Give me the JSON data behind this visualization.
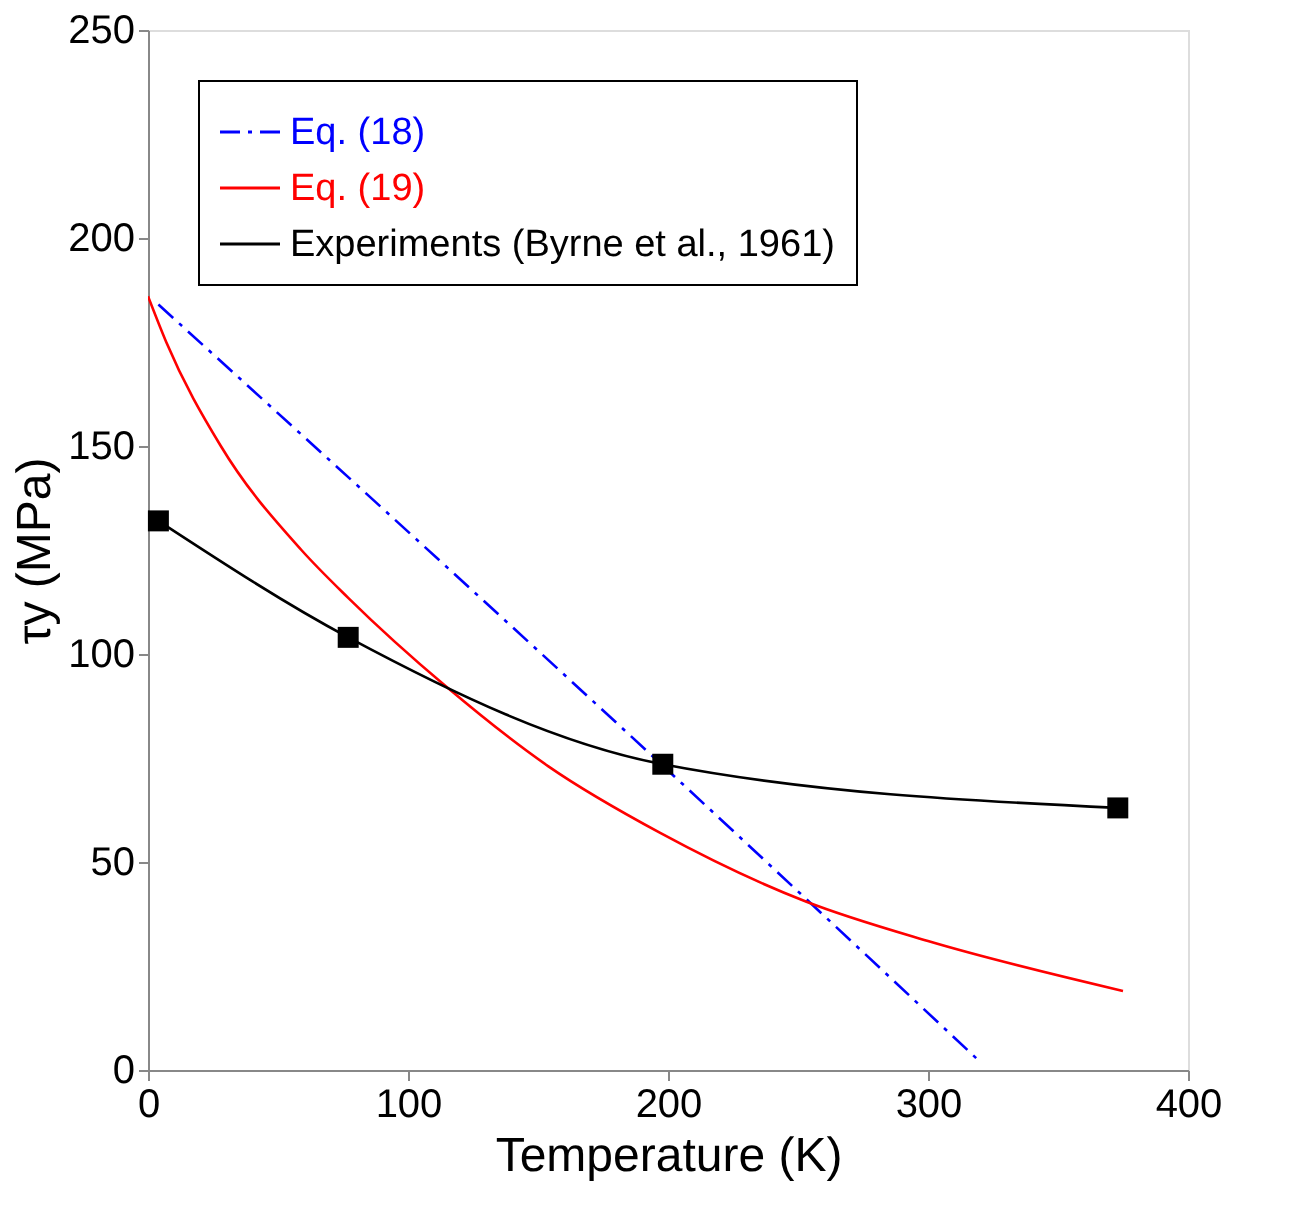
{
  "chart_data": {
    "type": "line",
    "xlabel": "Temperature (K)",
    "ylabel": "τy (MPa)",
    "xlim": [
      0,
      400
    ],
    "xticks": [
      0,
      100,
      200,
      300,
      400
    ],
    "ylim": [
      0,
      250
    ],
    "yticks": [
      0,
      50,
      100,
      150,
      200,
      250
    ],
    "grid": false,
    "legend": "top left",
    "series": [
      {
        "name": "Eq. (18)",
        "color": "#0000ff",
        "line_style": "dashdot",
        "marker": "none",
        "x": [
          4,
          200,
          320
        ],
        "values": [
          184,
          72,
          2
        ]
      },
      {
        "name": "Eq. (19)",
        "color": "#ff0000",
        "line_style": "solid",
        "marker": "none",
        "x": [
          0,
          7,
          28,
          59,
          77,
          115,
          154,
          197,
          253,
          300,
          375
        ],
        "values": [
          186,
          175,
          150,
          125,
          113.5,
          92,
          73,
          57,
          40.5,
          31,
          19
        ]
      },
      {
        "name": "Experiments (Byrne et al., 1961)",
        "color": "#000000",
        "line_style": "solid",
        "marker": "square",
        "x": [
          4,
          77,
          198,
          373
        ],
        "values": [
          132,
          104,
          73.5,
          63
        ]
      }
    ]
  }
}
